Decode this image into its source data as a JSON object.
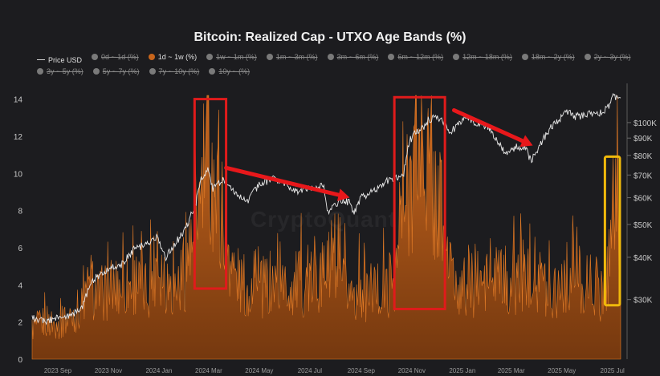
{
  "chart_data": {
    "type": "area",
    "title": "Bitcoin: Realized Cap - UTXO Age Bands (%)",
    "watermark": "CryptoQuant",
    "legend": [
      {
        "label": "Price USD",
        "kind": "line",
        "active": true
      },
      {
        "label": "0d ~ 1d (%)",
        "kind": "dot",
        "active": false
      },
      {
        "label": "1d ~ 1w (%)",
        "kind": "dot",
        "active": true
      },
      {
        "label": "1w ~ 1m (%)",
        "kind": "dot",
        "active": false
      },
      {
        "label": "1m ~ 3m (%)",
        "kind": "dot",
        "active": false
      },
      {
        "label": "3m ~ 6m (%)",
        "kind": "dot",
        "active": false
      },
      {
        "label": "6m ~ 12m (%)",
        "kind": "dot",
        "active": false
      },
      {
        "label": "12m ~ 18m (%)",
        "kind": "dot",
        "active": false
      },
      {
        "label": "18m ~ 2y (%)",
        "kind": "dot",
        "active": false
      },
      {
        "label": "2y ~ 3y (%)",
        "kind": "dot",
        "active": false
      },
      {
        "label": "3y ~ 5y (%)",
        "kind": "dot",
        "active": false
      },
      {
        "label": "5y ~ 7y (%)",
        "kind": "dot",
        "active": false
      },
      {
        "label": "7y ~ 10y (%)",
        "kind": "dot",
        "active": false
      },
      {
        "label": "10y ~ (%)",
        "kind": "dot",
        "active": false
      }
    ],
    "x_ticks": [
      "2023 Sep",
      "2023 Nov",
      "2024 Jan",
      "2024 Mar",
      "2024 May",
      "2024 Jul",
      "2024 Sep",
      "2024 Nov",
      "2025 Jan",
      "2025 Mar",
      "2025 May",
      "2025 Jul"
    ],
    "x_range": [
      "2023-08-15",
      "2025-07-25"
    ],
    "y_left": {
      "ticks": [
        0,
        2,
        4,
        6,
        8,
        10,
        12,
        14
      ],
      "range": [
        0,
        14.5
      ]
    },
    "y_right": {
      "scale": "log",
      "ticks": [
        "$30K",
        "$40K",
        "$50K",
        "$60K",
        "$70K",
        "$80K",
        "$90K",
        "$100K"
      ],
      "tick_values": [
        30000,
        40000,
        50000,
        60000,
        70000,
        80000,
        90000,
        100000
      ],
      "range": [
        20000,
        125000
      ]
    },
    "series": [
      {
        "name": "1d ~ 1w (%)",
        "axis": "left",
        "color": "#c8651b",
        "x": [
          "2023-08-15",
          "2023-09-01",
          "2023-09-15",
          "2023-10-01",
          "2023-10-15",
          "2023-10-25",
          "2023-11-01",
          "2023-11-15",
          "2023-12-01",
          "2023-12-15",
          "2024-01-01",
          "2024-01-12",
          "2024-02-01",
          "2024-02-15",
          "2024-02-28",
          "2024-03-05",
          "2024-03-10",
          "2024-03-14",
          "2024-03-20",
          "2024-04-01",
          "2024-04-15",
          "2024-05-01",
          "2024-05-15",
          "2024-06-01",
          "2024-06-15",
          "2024-07-01",
          "2024-07-15",
          "2024-08-01",
          "2024-08-05",
          "2024-08-20",
          "2024-09-01",
          "2024-09-15",
          "2024-10-01",
          "2024-10-15",
          "2024-10-28",
          "2024-11-05",
          "2024-11-12",
          "2024-11-20",
          "2024-12-01",
          "2024-12-10",
          "2024-12-20",
          "2025-01-01",
          "2025-01-15",
          "2025-02-01",
          "2025-02-15",
          "2025-03-01",
          "2025-03-15",
          "2025-04-01",
          "2025-04-08",
          "2025-04-20",
          "2025-05-01",
          "2025-05-15",
          "2025-06-01",
          "2025-06-15",
          "2025-07-01",
          "2025-07-10",
          "2025-07-15",
          "2025-07-25"
        ],
        "values": [
          2.0,
          2.5,
          2.2,
          2.8,
          3.5,
          5.0,
          4.0,
          4.5,
          4.8,
          5.0,
          4.5,
          6.5,
          4.5,
          5.5,
          7.5,
          10.0,
          12.5,
          13.5,
          11.0,
          9.5,
          5.5,
          4.5,
          4.5,
          5.0,
          4.5,
          5.0,
          4.8,
          5.5,
          6.0,
          4.8,
          4.5,
          4.2,
          4.5,
          4.5,
          6.0,
          9.0,
          11.5,
          13.8,
          13.5,
          11.0,
          10.0,
          5.5,
          4.5,
          5.0,
          4.8,
          5.2,
          5.0,
          5.5,
          6.5,
          5.0,
          4.5,
          5.2,
          5.5,
          4.8,
          4.5,
          6.0,
          10.5,
          8.5
        ]
      },
      {
        "name": "Price USD",
        "axis": "right",
        "color": "#e8e8e8",
        "x": [
          "2023-08-15",
          "2023-09-01",
          "2023-09-15",
          "2023-10-01",
          "2023-10-15",
          "2023-10-25",
          "2023-11-01",
          "2023-11-15",
          "2023-12-01",
          "2023-12-15",
          "2024-01-01",
          "2024-01-12",
          "2024-01-23",
          "2024-02-01",
          "2024-02-15",
          "2024-02-28",
          "2024-03-05",
          "2024-03-14",
          "2024-03-20",
          "2024-04-01",
          "2024-04-15",
          "2024-05-01",
          "2024-05-15",
          "2024-06-01",
          "2024-06-15",
          "2024-07-01",
          "2024-07-15",
          "2024-08-01",
          "2024-08-05",
          "2024-08-20",
          "2024-09-01",
          "2024-09-06",
          "2024-09-15",
          "2024-10-01",
          "2024-10-15",
          "2024-10-28",
          "2024-11-05",
          "2024-11-12",
          "2024-11-20",
          "2024-12-01",
          "2024-12-05",
          "2024-12-17",
          "2025-01-01",
          "2025-01-20",
          "2025-02-01",
          "2025-02-15",
          "2025-03-01",
          "2025-03-10",
          "2025-03-20",
          "2025-04-01",
          "2025-04-08",
          "2025-04-20",
          "2025-05-01",
          "2025-05-22",
          "2025-06-01",
          "2025-06-15",
          "2025-07-01",
          "2025-07-10",
          "2025-07-15",
          "2025-07-25"
        ],
        "values": [
          26500,
          26000,
          26500,
          27000,
          28500,
          34000,
          35000,
          37000,
          38000,
          42000,
          44000,
          46000,
          40000,
          43000,
          48000,
          57000,
          67000,
          73000,
          64000,
          68000,
          63000,
          58000,
          66000,
          68000,
          66000,
          62000,
          64000,
          65000,
          54000,
          59000,
          58000,
          54000,
          60000,
          63000,
          67000,
          69000,
          70000,
          88000,
          94000,
          97000,
          102000,
          104000,
          94000,
          104000,
          99000,
          97000,
          86000,
          80000,
          85000,
          84000,
          77000,
          87000,
          96000,
          108000,
          104000,
          106000,
          107000,
          111000,
          119000,
          118000
        ]
      }
    ],
    "annotations": {
      "red_boxes": [
        {
          "x0": "2024-02-27",
          "x1": "2024-04-05",
          "y0": 3.8,
          "y1": 14.0
        },
        {
          "x0": "2024-10-25",
          "x1": "2024-12-25",
          "y0": 2.7,
          "y1": 14.1
        }
      ],
      "yellow_boxes": [
        {
          "x0": "2025-07-06",
          "x1": "2025-07-24",
          "y0": 2.9,
          "y1": 10.9
        }
      ],
      "arrows": [
        {
          "from_x": "2024-04-05",
          "from_y": 10.3,
          "to_x": "2024-09-01",
          "to_y": 8.7
        },
        {
          "from_x": "2025-01-05",
          "from_y": 13.4,
          "to_x": "2025-04-10",
          "to_y": 11.5
        }
      ]
    },
    "colors": {
      "background": "#1c1c1f",
      "area": "#c8651b",
      "price": "#e8e8e8",
      "box_red": "#e01b1b",
      "box_yellow": "#f0b90b",
      "arrow": "#e8181b"
    }
  }
}
